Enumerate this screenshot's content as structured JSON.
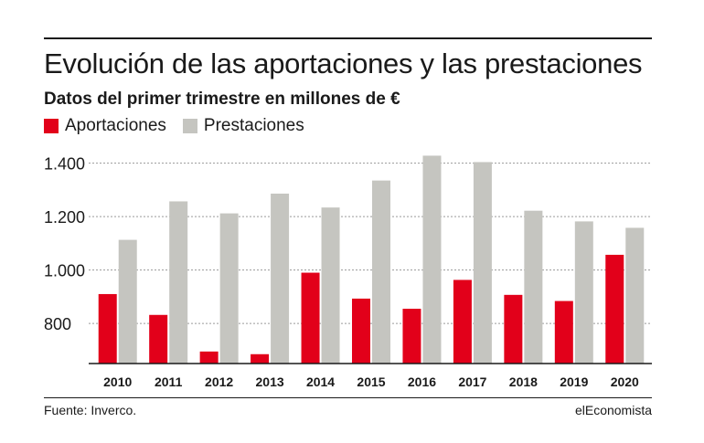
{
  "header": {
    "title": "Evolución de las aportaciones y las prestaciones",
    "subtitle": "Datos del primer trimestre en millones de €"
  },
  "footer": {
    "source": "Fuente: Inverco.",
    "brand": "elEconomista"
  },
  "colors": {
    "aportaciones": "#e2001a",
    "prestaciones": "#c5c5c0",
    "grid": "#9a9a9a",
    "axis": "#1a1a1a"
  },
  "chart_data": {
    "type": "bar",
    "title": "Evolución de las aportaciones y las prestaciones",
    "subtitle": "Datos del primer trimestre en millones de €",
    "xlabel": "",
    "ylabel": "",
    "categories": [
      "2010",
      "2011",
      "2012",
      "2013",
      "2014",
      "2015",
      "2016",
      "2017",
      "2018",
      "2019",
      "2020"
    ],
    "series": [
      {
        "name": "Aportaciones",
        "values": [
          910,
          832,
          695,
          685,
          990,
          893,
          855,
          963,
          907,
          884,
          1057
        ]
      },
      {
        "name": "Prestaciones",
        "values": [
          1113,
          1257,
          1212,
          1286,
          1234,
          1335,
          1428,
          1404,
          1222,
          1182,
          1158
        ]
      }
    ],
    "ylim": [
      650,
      1450
    ],
    "yticks": [
      800,
      1000,
      1200,
      1400
    ],
    "ytick_labels": [
      "800",
      "1.000",
      "1.200",
      "1.400"
    ],
    "grid": true,
    "legend_position": "top-left"
  }
}
